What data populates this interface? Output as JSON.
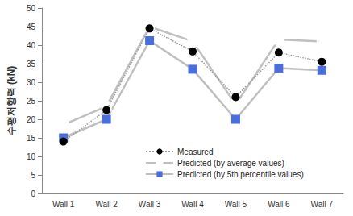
{
  "chart_data": {
    "type": "line",
    "y_label": "수평저항력 (kN)",
    "categories": [
      "Wall 1",
      "Wall 2",
      "Wall 3",
      "Wall 4",
      "Wall 5",
      "Wall 6",
      "Wall 7"
    ],
    "series": [
      {
        "name": "Measured",
        "color": "#000000",
        "marker": "circle",
        "line_style": "dotted",
        "values": [
          14,
          22.5,
          44.5,
          38.3,
          26,
          38,
          35.5
        ]
      },
      {
        "name": "Predicted (by average values)",
        "color": "#4a6fdc",
        "marker": "open-square",
        "line_style": "solid",
        "values": [
          18.5,
          23.5,
          45,
          41,
          24,
          41.5,
          41
        ]
      },
      {
        "name": "Predicted (by 5th percentile values)",
        "color": "#4a6fdc",
        "marker": "square",
        "line_style": "solid",
        "values": [
          15,
          20,
          41.2,
          33.5,
          20,
          33.8,
          33.2
        ]
      }
    ],
    "ylim": [
      0,
      50
    ],
    "yticks": [
      0,
      5,
      10,
      15,
      20,
      25,
      30,
      35,
      40,
      45,
      50
    ],
    "grid": false,
    "legend": "lower right"
  }
}
